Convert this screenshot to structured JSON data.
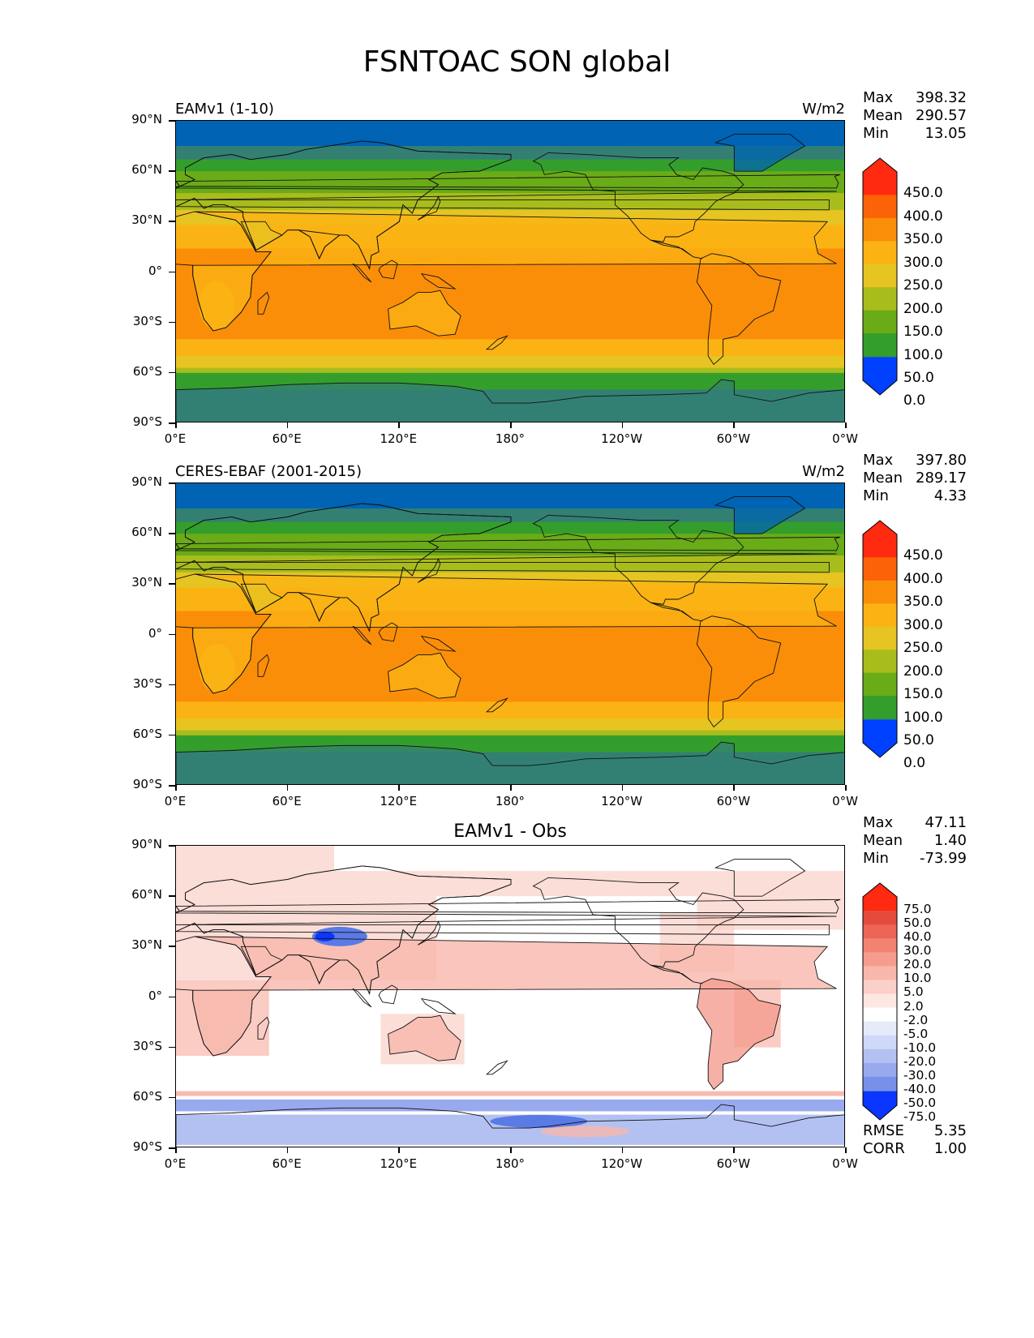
{
  "suptitle": "FSNTOAC SON global",
  "colors": {
    "abs": [
      "#0040ff",
      "#0063b3",
      "#338073",
      "#349e2c",
      "#6aab18",
      "#a8bd1c",
      "#e6c422",
      "#fbb314",
      "#fb8e09",
      "#fc6208",
      "#ff2a10"
    ],
    "diff": [
      "#0a36ff",
      "#3c60f0",
      "#5a7be6",
      "#7990ea",
      "#98a9ee",
      "#b3c1f2",
      "#cfd8f6",
      "#e6ebfa",
      "#ffffff",
      "#fde7e3",
      "#fbd0c8",
      "#f8b7ab",
      "#f59c8e",
      "#f28272",
      "#ec6556",
      "#e54a3c",
      "#ff2a10"
    ]
  },
  "x_ticks": [
    "0°E",
    "60°E",
    "120°E",
    "180°",
    "120°W",
    "60°W",
    "0°W"
  ],
  "y_ticks": [
    "90°N",
    "60°N",
    "30°N",
    "0°",
    "30°S",
    "60°S",
    "90°S"
  ],
  "panels": [
    {
      "left_title": "EAMv1 (1-10)",
      "center_title": "",
      "units": "W/m2",
      "stats": [
        [
          "Max",
          "398.32"
        ],
        [
          "Mean",
          "290.57"
        ],
        [
          "Min",
          "13.05"
        ]
      ],
      "colorbar_labels": [
        "450.0",
        "400.0",
        "350.0",
        "300.0",
        "250.0",
        "200.0",
        "150.0",
        "100.0",
        "50.0",
        "0.0"
      ],
      "footer": []
    },
    {
      "left_title": "CERES-EBAF (2001-2015)",
      "center_title": "",
      "units": "W/m2",
      "stats": [
        [
          "Max",
          "397.80"
        ],
        [
          "Mean",
          "289.17"
        ],
        [
          "Min",
          "4.33"
        ]
      ],
      "colorbar_labels": [
        "450.0",
        "400.0",
        "350.0",
        "300.0",
        "250.0",
        "200.0",
        "150.0",
        "100.0",
        "50.0",
        "0.0"
      ],
      "footer": []
    },
    {
      "left_title": "",
      "center_title": "EAMv1 - Obs",
      "units": "",
      "stats": [
        [
          "Max",
          "47.11"
        ],
        [
          "Mean",
          "1.40"
        ],
        [
          "Min",
          "-73.99"
        ]
      ],
      "colorbar_labels": [
        "75.0",
        "50.0",
        "40.0",
        "30.0",
        "20.0",
        "10.0",
        "5.0",
        "2.0",
        "-2.0",
        "-5.0",
        "-10.0",
        "-20.0",
        "-30.0",
        "-40.0",
        "-50.0",
        "-75.0"
      ],
      "footer": [
        [
          "RMSE",
          "5.35"
        ],
        [
          "CORR",
          "1.00"
        ]
      ]
    }
  ]
}
